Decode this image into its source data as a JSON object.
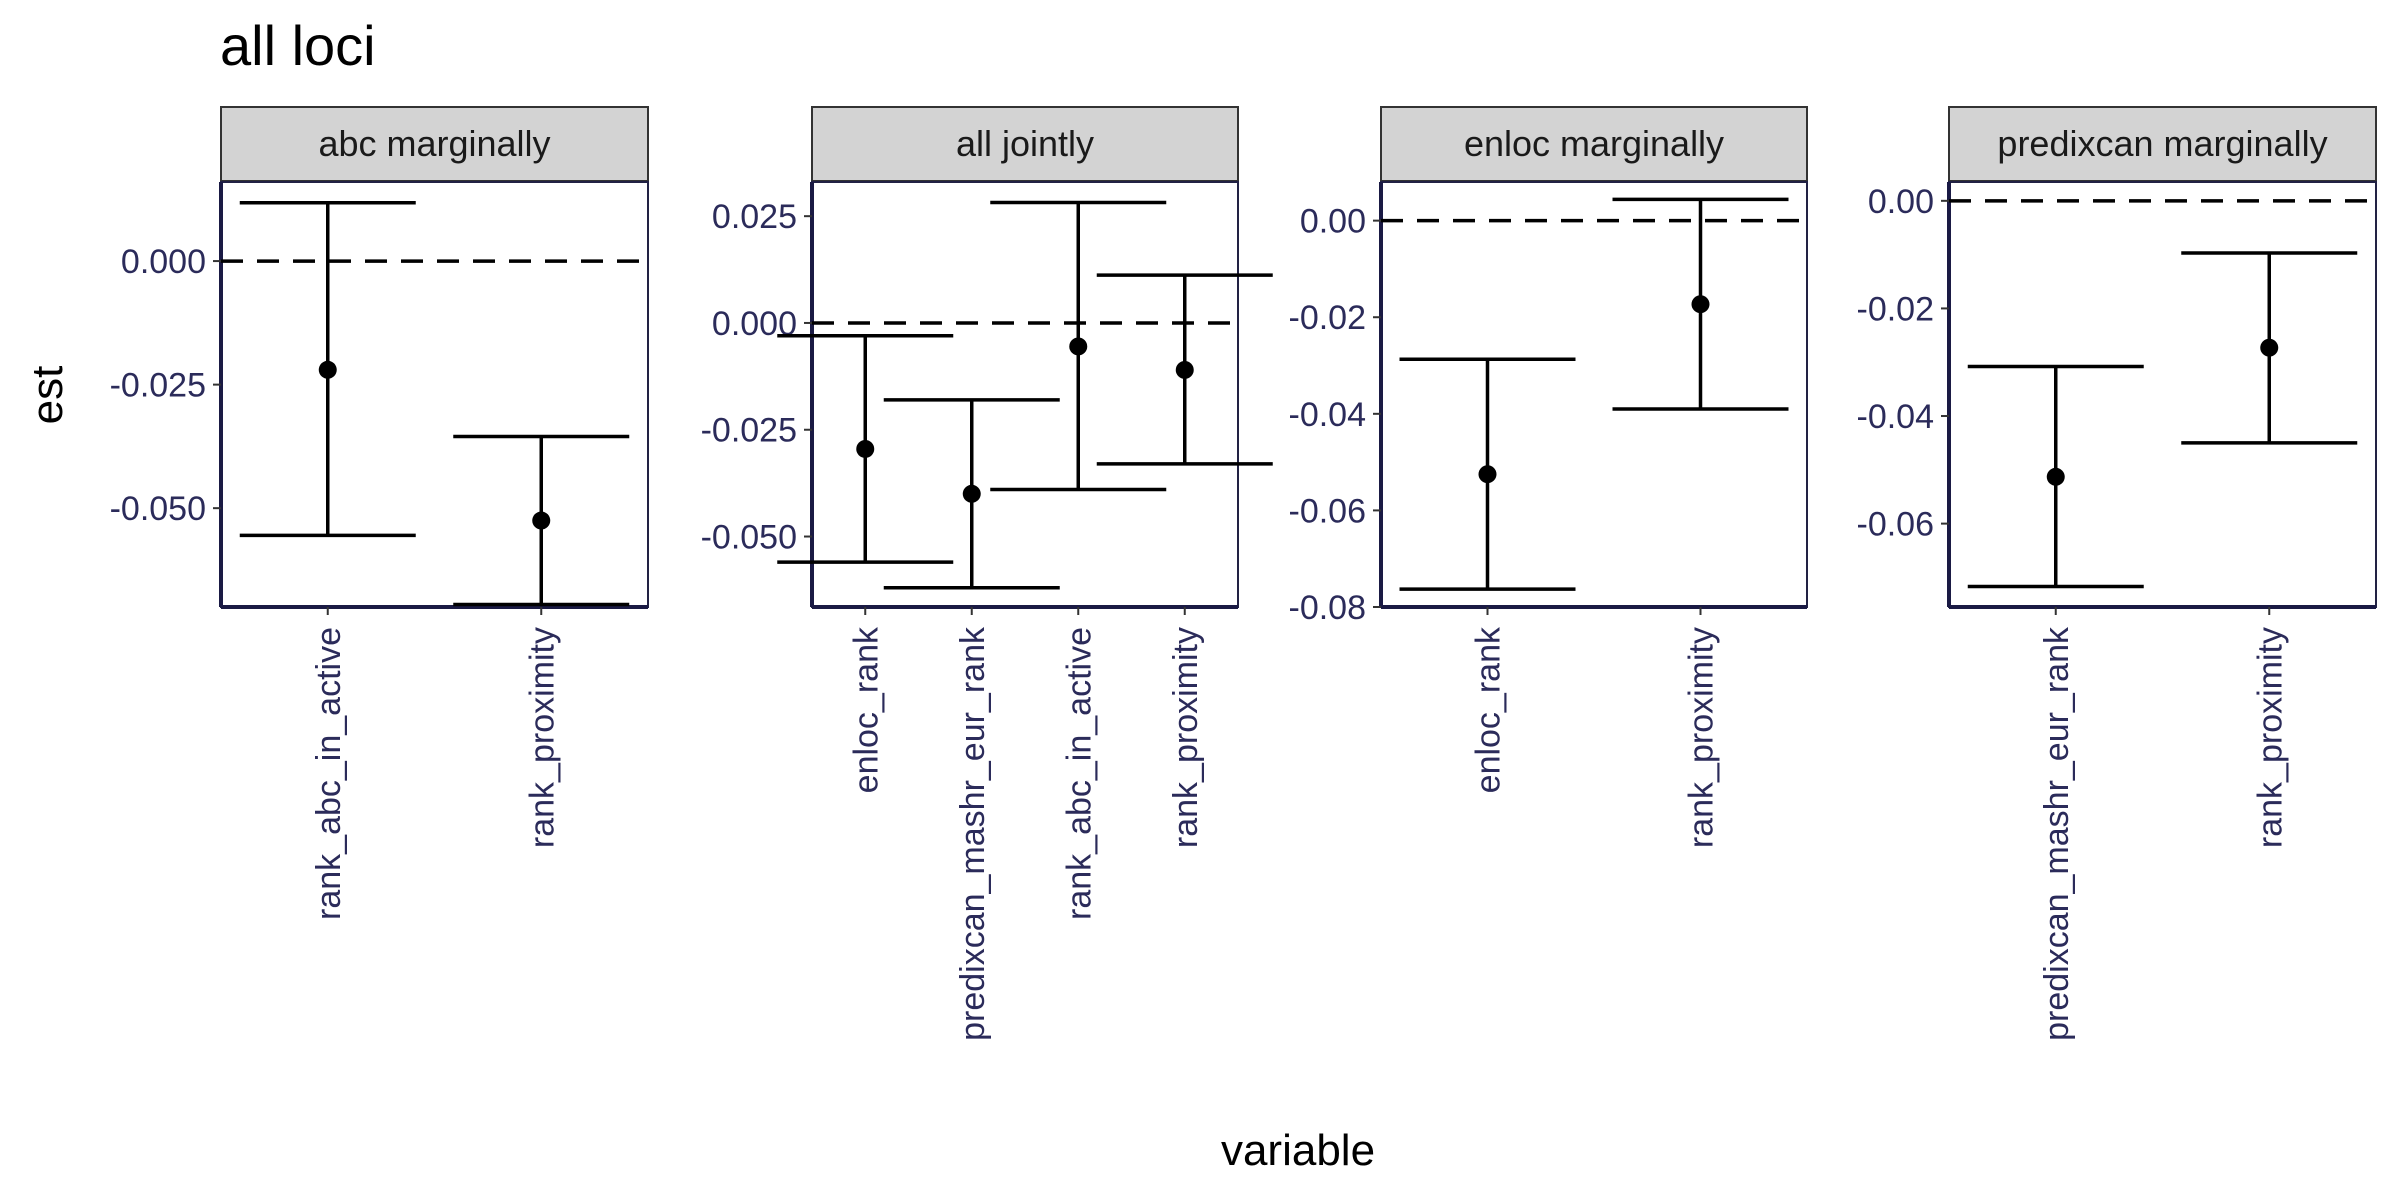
{
  "chart_data": {
    "type": "errorbar",
    "title": "all loci",
    "xlabel": "variable",
    "ylabel": "est",
    "reference_line": 0,
    "reference_line_style": "dashed",
    "grid": false,
    "facet_scales": "free",
    "colors": {
      "marks": "#000000",
      "strip_fill": "#d3d3d3",
      "tick_text": "#2b2b5a"
    },
    "panels": [
      {
        "facet": "abc marginally",
        "ylim": [
          -0.07,
          0.016
        ],
        "yticks": [
          0.0,
          -0.025,
          -0.05
        ],
        "ytick_labels": [
          "0.000",
          "-0.025",
          "-0.050"
        ],
        "categories": [
          "rank_abc_in_active",
          "rank_proximity"
        ],
        "points": [
          {
            "variable": "rank_abc_in_active",
            "est": -0.022,
            "lower": -0.0555,
            "upper": 0.0118
          },
          {
            "variable": "rank_proximity",
            "est": -0.0525,
            "lower": -0.0695,
            "upper": -0.0355
          }
        ]
      },
      {
        "facet": "all jointly",
        "ylim": [
          -0.0665,
          0.033
        ],
        "yticks": [
          0.025,
          0.0,
          -0.025,
          -0.05
        ],
        "ytick_labels": [
          "0.025",
          "0.000",
          "-0.025",
          "-0.050"
        ],
        "categories": [
          "enloc_rank",
          "predixcan_mashr_eur_rank",
          "rank_abc_in_active",
          "rank_proximity"
        ],
        "points": [
          {
            "variable": "enloc_rank",
            "est": -0.0295,
            "lower": -0.056,
            "upper": -0.003
          },
          {
            "variable": "predixcan_mashr_eur_rank",
            "est": -0.04,
            "lower": -0.062,
            "upper": -0.018
          },
          {
            "variable": "rank_abc_in_active",
            "est": -0.0055,
            "lower": -0.039,
            "upper": 0.0282
          },
          {
            "variable": "rank_proximity",
            "est": -0.011,
            "lower": -0.033,
            "upper": 0.0112
          }
        ]
      },
      {
        "facet": "enloc marginally",
        "ylim": [
          -0.08,
          0.008
        ],
        "yticks": [
          0.0,
          -0.02,
          -0.04,
          -0.06,
          -0.08
        ],
        "ytick_labels": [
          "0.00",
          "-0.02",
          "-0.04",
          "-0.06",
          "-0.08"
        ],
        "categories": [
          "enloc_rank",
          "rank_proximity"
        ],
        "points": [
          {
            "variable": "enloc_rank",
            "est": -0.0525,
            "lower": -0.0763,
            "upper": -0.0287
          },
          {
            "variable": "rank_proximity",
            "est": -0.0173,
            "lower": -0.039,
            "upper": 0.0044
          }
        ]
      },
      {
        "facet": "predixcan marginally",
        "ylim": [
          -0.0755,
          0.0035
        ],
        "yticks": [
          0.0,
          -0.02,
          -0.04,
          -0.06
        ],
        "ytick_labels": [
          "0.00",
          "-0.02",
          "-0.04",
          "-0.06"
        ],
        "categories": [
          "predixcan_mashr_eur_rank",
          "rank_proximity"
        ],
        "points": [
          {
            "variable": "predixcan_mashr_eur_rank",
            "est": -0.0513,
            "lower": -0.0717,
            "upper": -0.0308
          },
          {
            "variable": "rank_proximity",
            "est": -0.0273,
            "lower": -0.045,
            "upper": -0.0097
          }
        ]
      }
    ]
  }
}
